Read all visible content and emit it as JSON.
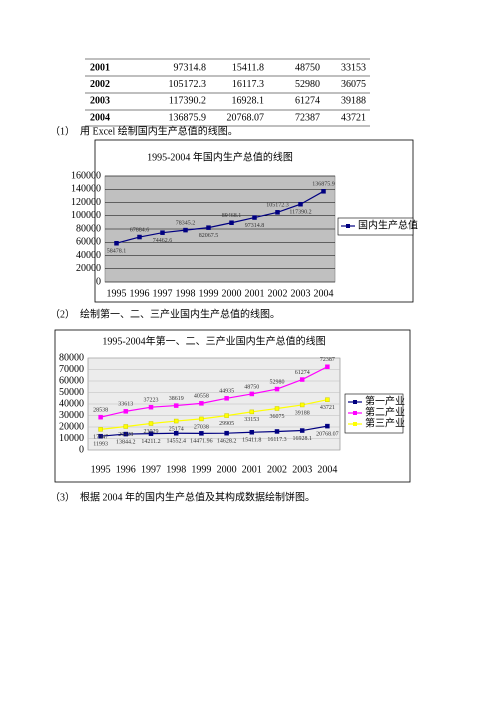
{
  "table": {
    "rows": [
      [
        2001,
        97314.8,
        15411.8,
        48750,
        33153
      ],
      [
        2002,
        105172.3,
        16117.3,
        52980,
        36075
      ],
      [
        2003,
        117390.2,
        16928.1,
        61274,
        39188
      ],
      [
        2004,
        136875.9,
        20768.07,
        72387,
        43721
      ]
    ]
  },
  "document": {
    "caption_1": "（1）　用 Excel 绘制国内生产总值的线图。",
    "caption_2": "（2）　绘制第一、二、三产业国内生产总值的线图。",
    "caption_3": "（3）　根据 2004 年的国内生产总值及其构成数据绘制饼图。"
  },
  "chart_data": [
    {
      "type": "line",
      "title": "1995-2004 年国内生产总值的线图",
      "categories": [
        "1995",
        "1996",
        "1997",
        "1998",
        "1999",
        "2000",
        "2001",
        "2002",
        "2003",
        "2004"
      ],
      "series": [
        {
          "name": "国内生产总值",
          "color": "#000080",
          "values": [
            58478.1,
            67884.6,
            74462.6,
            78345.2,
            82067.5,
            89468.1,
            97314.8,
            105172.3,
            117390.2,
            136875.9
          ]
        }
      ],
      "ylim": [
        0,
        160000
      ],
      "yticks": [
        0,
        20000,
        40000,
        60000,
        80000,
        100000,
        120000,
        140000,
        160000
      ],
      "grid": true,
      "legend": "right"
    },
    {
      "type": "line",
      "title": "1995-2004年第一、二、三产业国内生产总值的线图",
      "categories": [
        "1995",
        "1996",
        "1997",
        "1998",
        "1999",
        "2000",
        "2001",
        "2002",
        "2003",
        "2004"
      ],
      "series": [
        {
          "name": "第一产业",
          "color": "#000080",
          "values": [
            11993,
            13844.2,
            14211.2,
            14552.4,
            14471.96,
            14628.2,
            15411.8,
            16117.3,
            16928.1,
            20768.07
          ]
        },
        {
          "name": "第二产业",
          "color": "#ff00ff",
          "values": [
            28538,
            33613,
            37223,
            38619,
            40558,
            44935,
            48750,
            52980,
            61274,
            72387
          ]
        },
        {
          "name": "第三产业",
          "color": "#ffff00",
          "values": [
            17947,
            20428,
            23029,
            25174,
            27038,
            29905,
            33153,
            36075,
            39188,
            43721
          ]
        }
      ],
      "ylim": [
        0,
        80000
      ],
      "yticks": [
        0,
        10000,
        20000,
        30000,
        40000,
        50000,
        60000,
        70000,
        80000
      ],
      "grid": true,
      "legend": "right"
    }
  ]
}
